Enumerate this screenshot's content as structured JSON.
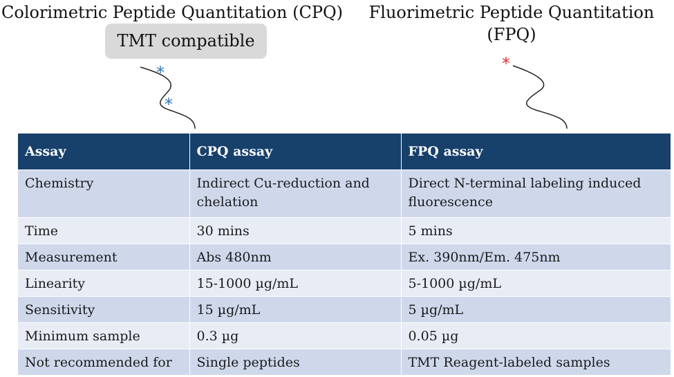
{
  "titles": {
    "cpq": "Colorimetric Peptide Quantitation (CPQ)",
    "fpq": "Fluorimetric Peptide Quantitation (FPQ)"
  },
  "badge": "TMT compatible",
  "markers": {
    "star": "*",
    "star_colors": {
      "cpq": "#2e75b6",
      "fpq": "#e03030"
    }
  },
  "table": {
    "headers": [
      "Assay",
      "CPQ assay",
      "FPQ assay"
    ],
    "rows": [
      [
        "Chemistry",
        "Indirect Cu-reduction and chelation",
        "Direct N-terminal labeling induced fluorescence"
      ],
      [
        "Time",
        "30 mins",
        "5 mins"
      ],
      [
        "Measurement",
        "Abs 480nm",
        "Ex. 390nm/Em. 475nm"
      ],
      [
        "Linearity",
        "15-1000 µg/mL",
        "5-1000 µg/mL"
      ],
      [
        "Sensitivity",
        "15 µg/mL",
        "5 µg/mL"
      ],
      [
        "Minimum sample",
        "0.3 µg",
        "0.05 µg"
      ],
      [
        "Not recommended for",
        "Single peptides",
        "TMT Reagent-labeled samples"
      ]
    ]
  },
  "colors": {
    "header_bg": "#17406b",
    "row_dark": "#cfd8eb",
    "row_light": "#e8ecf5",
    "badge_bg": "#d9d9d9"
  }
}
